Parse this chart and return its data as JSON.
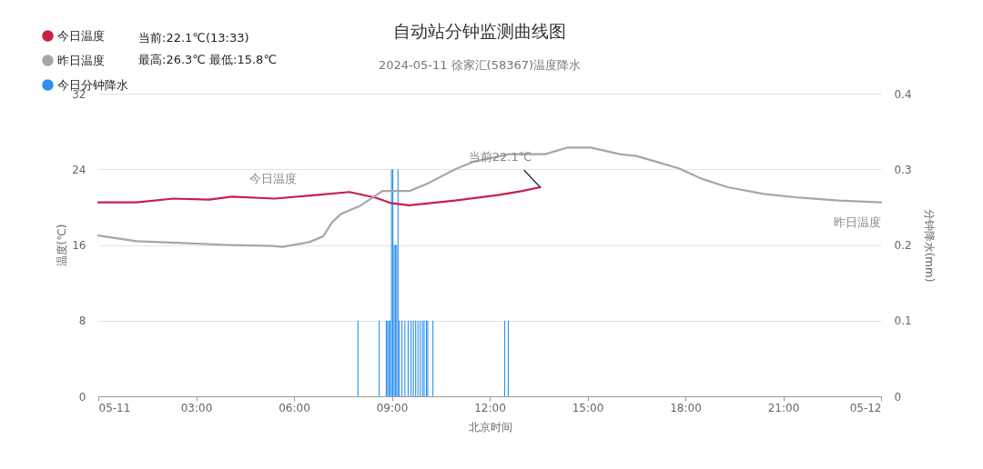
{
  "chart_data": {
    "type": "line",
    "title": "自动站分钟监测曲线图",
    "subtitle": "2024-05-11 徐家汇(58367)温度降水",
    "xlabel": "北京时间",
    "ylabel": "温度(℃)",
    "y2label": "分钟降水(mm)",
    "xlim": [
      0,
      24
    ],
    "xticks": [
      {
        "value": 0,
        "label": "05-11"
      },
      {
        "value": 3,
        "label": "03:00"
      },
      {
        "value": 6,
        "label": "06:00"
      },
      {
        "value": 9,
        "label": "09:00"
      },
      {
        "value": 12,
        "label": "12:00"
      },
      {
        "value": 15,
        "label": "15:00"
      },
      {
        "value": 18,
        "label": "18:00"
      },
      {
        "value": 21,
        "label": "21:00"
      },
      {
        "value": 24,
        "label": "05-12"
      }
    ],
    "ylim": [
      0,
      32
    ],
    "yticks": [
      0,
      8,
      16,
      24,
      32
    ],
    "y2lim": [
      0,
      0.4
    ],
    "y2ticks": [
      0,
      0.1,
      0.2,
      0.3,
      0.4
    ],
    "grid": "y",
    "legend": "top left",
    "annotations": [
      "当前:22.1℃(13:33)",
      "最高:26.3℃ 最低:15.8℃",
      {
        "text": "今日温度",
        "x": 5.36,
        "y": 20.9
      },
      {
        "text": "昨日温度",
        "x": 24,
        "y": 20.5
      },
      {
        "text": "当前22.1℃",
        "x": 13.55,
        "y": 22.1
      }
    ],
    "series": [
      {
        "name": "今日温度",
        "color": "#c62048",
        "x": [
          0,
          1.17,
          2.3,
          3.4,
          4.1,
          5.4,
          6.75,
          7.7,
          8.5,
          9.0,
          9.54,
          10.94,
          12.3,
          13.0,
          13.55
        ],
        "values": [
          20.5,
          20.5,
          20.9,
          20.8,
          21.1,
          20.9,
          21.3,
          21.6,
          21.0,
          20.4,
          20.2,
          20.7,
          21.3,
          21.7,
          22.1
        ]
      },
      {
        "name": "昨日温度",
        "color": "#a6a6a6",
        "x": [
          0,
          1.17,
          2.57,
          3.96,
          5.36,
          5.64,
          6.47,
          6.89,
          7.17,
          7.45,
          8.01,
          8.71,
          9.54,
          10.1,
          10.94,
          11.5,
          12.6,
          13.7,
          14.4,
          15.1,
          16.0,
          16.5,
          17.1,
          17.8,
          18.5,
          19.3,
          20.4,
          21.5,
          22.7,
          24
        ],
        "values": [
          17.0,
          16.4,
          16.2,
          16.0,
          15.9,
          15.8,
          16.3,
          16.9,
          18.4,
          19.3,
          20.1,
          21.7,
          21.7,
          22.5,
          24.0,
          24.8,
          25.6,
          25.6,
          26.3,
          26.3,
          25.6,
          25.4,
          24.8,
          24.1,
          23.0,
          22.1,
          21.4,
          21.0,
          20.7,
          20.5
        ]
      },
      {
        "name": "今日分钟降水",
        "type": "bar",
        "axis": "y2",
        "color": "#2b8ff0",
        "x": [
          7.96,
          8.61,
          8.83,
          8.87,
          8.91,
          8.95,
          8.99,
          9.03,
          9.07,
          9.11,
          9.15,
          9.19,
          9.23,
          9.31,
          9.4,
          9.5,
          9.59,
          9.66,
          9.73,
          9.8,
          9.87,
          9.94,
          9.99,
          10.06,
          10.1,
          10.26,
          12.46,
          12.57
        ],
        "values": [
          0.1,
          0.1,
          0.1,
          0.1,
          0.1,
          0.1,
          0.3,
          0.3,
          0.2,
          0.2,
          0.2,
          0.3,
          0.1,
          0.1,
          0.1,
          0.1,
          0.1,
          0.1,
          0.1,
          0.1,
          0.1,
          0.1,
          0.1,
          0.1,
          0.1,
          0.1,
          0.1,
          0.1
        ]
      }
    ]
  }
}
